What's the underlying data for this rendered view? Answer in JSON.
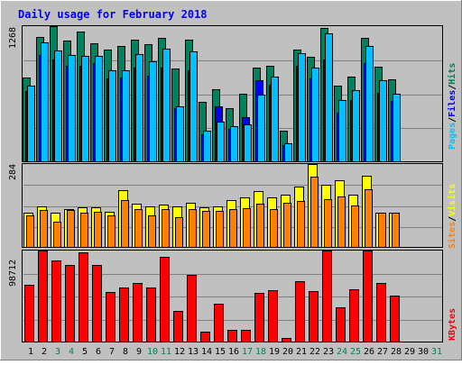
{
  "title": "Daily usage for February 2018",
  "colors": {
    "background": "#c0c0c0",
    "title": "#0000ff",
    "hits": "#00805c",
    "files": "#0000ff",
    "pages": "#00c0ff",
    "visits": "#ffff00",
    "sites": "#ff8000",
    "kbytes": "#ff0000",
    "weekend_day": "#00805c",
    "weekday_day": "#000000"
  },
  "chart_data": [
    {
      "type": "bar",
      "name": "hits-files-pages",
      "y_axis_max_label": "1268",
      "ylim": [
        0,
        1268
      ],
      "legend": [
        "Pages",
        "/",
        "Files",
        "/",
        "Hits"
      ],
      "categories": [
        "1",
        "2",
        "3",
        "4",
        "5",
        "6",
        "7",
        "8",
        "9",
        "10",
        "11",
        "12",
        "13",
        "14",
        "15",
        "16",
        "17",
        "18",
        "19",
        "20",
        "21",
        "22",
        "23",
        "24",
        "25",
        "26",
        "27",
        "28",
        "29",
        "30",
        "31"
      ],
      "series": [
        {
          "name": "Hits",
          "values": [
            790,
            1170,
            1268,
            1130,
            1220,
            1110,
            1050,
            1080,
            1140,
            1100,
            1160,
            870,
            1140,
            560,
            680,
            500,
            640,
            880,
            900,
            290,
            1050,
            980,
            1250,
            710,
            800,
            1160,
            890,
            770,
            null,
            null,
            null
          ]
        },
        {
          "name": "Files",
          "values": [
            660,
            1000,
            960,
            900,
            900,
            920,
            780,
            790,
            880,
            810,
            880,
            500,
            860,
            260,
            520,
            310,
            420,
            760,
            720,
            160,
            900,
            780,
            960,
            460,
            580,
            920,
            650,
            570,
            null,
            null,
            null
          ]
        },
        {
          "name": "Pages",
          "values": [
            710,
            1120,
            1040,
            1000,
            990,
            990,
            860,
            860,
            1010,
            940,
            1060,
            520,
            1030,
            290,
            380,
            340,
            350,
            630,
            800,
            180,
            1020,
            880,
            1200,
            580,
            670,
            1080,
            760,
            640,
            null,
            null,
            null
          ]
        }
      ]
    },
    {
      "type": "bar",
      "name": "visits-sites",
      "y_axis_max_label": "284",
      "ylim": [
        0,
        284
      ],
      "legend": [
        "Sites",
        "/",
        "Visits"
      ],
      "categories": [
        "1",
        "2",
        "3",
        "4",
        "5",
        "6",
        "7",
        "8",
        "9",
        "10",
        "11",
        "12",
        "13",
        "14",
        "15",
        "16",
        "17",
        "18",
        "19",
        "20",
        "21",
        "22",
        "23",
        "24",
        "25",
        "26",
        "27",
        "28",
        "29",
        "30",
        "31"
      ],
      "series": [
        {
          "name": "Visits",
          "values": [
            120,
            140,
            118,
            130,
            138,
            138,
            122,
            196,
            150,
            140,
            148,
            140,
            152,
            138,
            140,
            162,
            170,
            192,
            172,
            180,
            208,
            284,
            214,
            230,
            180,
            244,
            120,
            120,
            null,
            null,
            null
          ]
        },
        {
          "name": "Sites",
          "values": [
            110,
            128,
            90,
            128,
            120,
            122,
            110,
            162,
            130,
            110,
            130,
            105,
            132,
            125,
            125,
            132,
            135,
            150,
            130,
            152,
            160,
            240,
            165,
            175,
            145,
            200,
            120,
            120,
            null,
            null,
            null
          ]
        }
      ]
    },
    {
      "type": "bar",
      "name": "kbytes",
      "y_axis_max_label": "98712",
      "ylim": [
        0,
        98712
      ],
      "legend": [
        "KBytes"
      ],
      "categories": [
        "1",
        "2",
        "3",
        "4",
        "5",
        "6",
        "7",
        "8",
        "9",
        "10",
        "11",
        "12",
        "13",
        "14",
        "15",
        "16",
        "17",
        "18",
        "19",
        "20",
        "21",
        "22",
        "23",
        "24",
        "25",
        "26",
        "27",
        "28",
        "29",
        "30",
        "31"
      ],
      "series": [
        {
          "name": "KBytes",
          "values": [
            62000,
            98712,
            88000,
            83000,
            97000,
            83000,
            54000,
            59000,
            64000,
            59000,
            92000,
            34000,
            73000,
            12000,
            42000,
            14000,
            14000,
            53000,
            56000,
            5000,
            66000,
            55000,
            98712,
            38000,
            57000,
            98712,
            64000,
            50000,
            null,
            null,
            null
          ]
        }
      ]
    }
  ],
  "day_labels": [
    {
      "label": "1",
      "weekend": false
    },
    {
      "label": "2",
      "weekend": false
    },
    {
      "label": "3",
      "weekend": true
    },
    {
      "label": "4",
      "weekend": true
    },
    {
      "label": "5",
      "weekend": false
    },
    {
      "label": "6",
      "weekend": false
    },
    {
      "label": "7",
      "weekend": false
    },
    {
      "label": "8",
      "weekend": false
    },
    {
      "label": "9",
      "weekend": false
    },
    {
      "label": "10",
      "weekend": true
    },
    {
      "label": "11",
      "weekend": true
    },
    {
      "label": "12",
      "weekend": false
    },
    {
      "label": "13",
      "weekend": false
    },
    {
      "label": "14",
      "weekend": false
    },
    {
      "label": "15",
      "weekend": false
    },
    {
      "label": "16",
      "weekend": false
    },
    {
      "label": "17",
      "weekend": true
    },
    {
      "label": "18",
      "weekend": true
    },
    {
      "label": "19",
      "weekend": false
    },
    {
      "label": "20",
      "weekend": false
    },
    {
      "label": "21",
      "weekend": false
    },
    {
      "label": "22",
      "weekend": false
    },
    {
      "label": "23",
      "weekend": false
    },
    {
      "label": "24",
      "weekend": true
    },
    {
      "label": "25",
      "weekend": true
    },
    {
      "label": "26",
      "weekend": false
    },
    {
      "label": "27",
      "weekend": false
    },
    {
      "label": "28",
      "weekend": false
    },
    {
      "label": "29",
      "weekend": false
    },
    {
      "label": "30",
      "weekend": false
    },
    {
      "label": "31",
      "weekend": true
    }
  ]
}
